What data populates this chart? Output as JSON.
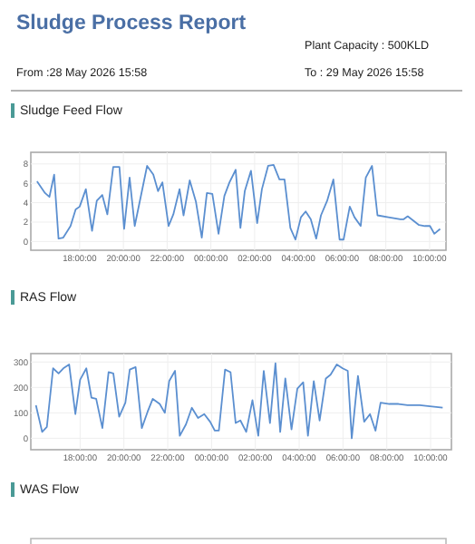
{
  "chart_data": [
    {
      "type": "other",
      "title": "Sludge Process Report",
      "annotations": [
        "Plant Capacity : 500KLD",
        "From :28 May 2026 15:58",
        "To : 29 May 2026 15:58"
      ]
    },
    {
      "type": "line",
      "title": "Sludge Feed Flow",
      "grid": true,
      "xlim": [
        "2026-05-28T15:46",
        "2026-05-29T10:45"
      ],
      "ylim": [
        -0.9,
        9.2
      ],
      "yticks": [
        0,
        2,
        4,
        6,
        8
      ],
      "xticks": [
        {
          "value": "2026-05-28T18:00",
          "label": "18:00:00"
        },
        {
          "value": "2026-05-28T20:00",
          "label": "20:00:00"
        },
        {
          "value": "2026-05-28T22:00",
          "label": "22:00:00"
        },
        {
          "value": "2026-05-29T00:00",
          "label": "00:00:00"
        },
        {
          "value": "2026-05-29T02:00",
          "label": "02:00:00"
        },
        {
          "value": "2026-05-29T04:00",
          "label": "04:00:00"
        },
        {
          "value": "2026-05-29T06:00",
          "label": "06:00:00"
        },
        {
          "value": "2026-05-29T08:00",
          "label": "08:00:00"
        },
        {
          "value": "2026-05-29T10:00",
          "label": "10:00:00"
        }
      ],
      "series": [
        {
          "color": "#5b8fd0",
          "x": [
            "2026-05-28T16:03",
            "2026-05-28T16:25",
            "2026-05-28T16:37",
            "2026-05-28T16:50",
            "2026-05-28T17:02",
            "2026-05-28T17:15",
            "2026-05-28T17:35",
            "2026-05-28T17:49",
            "2026-05-28T18:00",
            "2026-05-28T18:17",
            "2026-05-28T18:34",
            "2026-05-28T18:47",
            "2026-05-28T19:02",
            "2026-05-28T19:16",
            "2026-05-28T19:32",
            "2026-05-28T19:49",
            "2026-05-28T20:02",
            "2026-05-28T20:17",
            "2026-05-28T20:31",
            "2026-05-28T21:05",
            "2026-05-28T21:22",
            "2026-05-28T21:35",
            "2026-05-28T21:47",
            "2026-05-28T22:04",
            "2026-05-28T22:17",
            "2026-05-28T22:34",
            "2026-05-28T22:45",
            "2026-05-28T23:02",
            "2026-05-28T23:19",
            "2026-05-28T23:35",
            "2026-05-28T23:49",
            "2026-05-29T00:04",
            "2026-05-29T00:21",
            "2026-05-29T00:37",
            "2026-05-29T00:51",
            "2026-05-29T01:08",
            "2026-05-29T01:21",
            "2026-05-29T01:33",
            "2026-05-29T01:50",
            "2026-05-29T02:07",
            "2026-05-29T02:20",
            "2026-05-29T02:37",
            "2026-05-29T02:52",
            "2026-05-29T03:08",
            "2026-05-29T03:22",
            "2026-05-29T03:38",
            "2026-05-29T03:52",
            "2026-05-29T04:07",
            "2026-05-29T04:20",
            "2026-05-29T04:34",
            "2026-05-29T04:49",
            "2026-05-29T05:02",
            "2026-05-29T05:19",
            "2026-05-29T05:36",
            "2026-05-29T05:53",
            "2026-05-29T06:04",
            "2026-05-29T06:21",
            "2026-05-29T06:34",
            "2026-05-29T06:51",
            "2026-05-29T07:05",
            "2026-05-29T07:22",
            "2026-05-29T07:37",
            "2026-05-29T08:07",
            "2026-05-29T08:40",
            "2026-05-29T08:49",
            "2026-05-29T09:00",
            "2026-05-29T09:31",
            "2026-05-29T09:47",
            "2026-05-29T10:01",
            "2026-05-29T10:13",
            "2026-05-29T10:29"
          ],
          "values": [
            6.2,
            5.0,
            4.6,
            6.9,
            0.3,
            0.4,
            1.6,
            3.3,
            3.6,
            5.4,
            1.1,
            4.2,
            4.8,
            2.8,
            7.7,
            7.7,
            1.3,
            6.6,
            1.6,
            7.8,
            6.9,
            5.2,
            6.1,
            1.6,
            2.8,
            5.4,
            2.7,
            6.3,
            4.1,
            0.4,
            5.0,
            4.9,
            0.8,
            4.7,
            6.1,
            7.4,
            1.4,
            5.2,
            7.3,
            1.9,
            5.4,
            7.8,
            7.9,
            6.4,
            6.4,
            1.4,
            0.2,
            2.5,
            3.1,
            2.3,
            0.3,
            2.7,
            4.2,
            6.4,
            0.2,
            0.2,
            3.6,
            2.5,
            1.6,
            6.6,
            7.8,
            2.7,
            2.5,
            2.3,
            2.3,
            2.6,
            1.7,
            1.6,
            1.6,
            0.8,
            1.3
          ]
        }
      ]
    },
    {
      "type": "line",
      "title": "RAS Flow",
      "grid": true,
      "xlim": [
        "2026-05-28T15:45",
        "2026-05-29T10:57"
      ],
      "ylim": [
        -45,
        333
      ],
      "yticks": [
        0,
        100,
        200,
        300
      ],
      "xticks": [
        {
          "value": "2026-05-28T18:00",
          "label": "18:00:00"
        },
        {
          "value": "2026-05-28T20:00",
          "label": "20:00:00"
        },
        {
          "value": "2026-05-28T22:00",
          "label": "22:00:00"
        },
        {
          "value": "2026-05-29T00:00",
          "label": "00:00:00"
        },
        {
          "value": "2026-05-29T02:00",
          "label": "02:00:00"
        },
        {
          "value": "2026-05-29T04:00",
          "label": "04:00:00"
        },
        {
          "value": "2026-05-29T06:00",
          "label": "06:00:00"
        },
        {
          "value": "2026-05-29T08:00",
          "label": "08:00:00"
        },
        {
          "value": "2026-05-29T10:00",
          "label": "10:00:00"
        }
      ],
      "series": [
        {
          "color": "#5b8fd0",
          "x": [
            "2026-05-28T15:59",
            "2026-05-28T16:16",
            "2026-05-28T16:29",
            "2026-05-28T16:46",
            "2026-05-28T17:01",
            "2026-05-28T17:14",
            "2026-05-28T17:30",
            "2026-05-28T17:47",
            "2026-05-28T18:00",
            "2026-05-28T18:17",
            "2026-05-28T18:31",
            "2026-05-28T18:44",
            "2026-05-28T19:01",
            "2026-05-28T19:18",
            "2026-05-28T19:31",
            "2026-05-28T19:47",
            "2026-05-28T20:04",
            "2026-05-28T20:16",
            "2026-05-28T20:32",
            "2026-05-28T20:49",
            "2026-05-28T21:05",
            "2026-05-28T21:19",
            "2026-05-28T21:38",
            "2026-05-28T21:52",
            "2026-05-28T22:04",
            "2026-05-28T22:20",
            "2026-05-28T22:33",
            "2026-05-28T22:50",
            "2026-05-28T23:06",
            "2026-05-28T23:23",
            "2026-05-28T23:40",
            "2026-05-28T23:56",
            "2026-05-29T00:09",
            "2026-05-29T00:20",
            "2026-05-29T00:37",
            "2026-05-29T00:52",
            "2026-05-29T01:06",
            "2026-05-29T01:19",
            "2026-05-29T01:35",
            "2026-05-29T01:52",
            "2026-05-29T02:08",
            "2026-05-29T02:23",
            "2026-05-29T02:40",
            "2026-05-29T02:55",
            "2026-05-29T03:08",
            "2026-05-29T03:22",
            "2026-05-29T03:39",
            "2026-05-29T03:55",
            "2026-05-29T04:11",
            "2026-05-29T04:24",
            "2026-05-29T04:40",
            "2026-05-29T04:56",
            "2026-05-29T05:13",
            "2026-05-29T05:26",
            "2026-05-29T05:43",
            "2026-05-29T05:59",
            "2026-05-29T06:13",
            "2026-05-29T06:24",
            "2026-05-29T06:41",
            "2026-05-29T06:58",
            "2026-05-29T07:14",
            "2026-05-29T07:29",
            "2026-05-29T07:43",
            "2026-05-29T08:07",
            "2026-05-29T08:32",
            "2026-05-29T08:57",
            "2026-05-29T09:30",
            "2026-05-29T10:04",
            "2026-05-29T10:33"
          ],
          "values": [
            130,
            25,
            45,
            275,
            255,
            275,
            290,
            95,
            230,
            275,
            160,
            155,
            40,
            260,
            255,
            85,
            140,
            270,
            280,
            40,
            105,
            155,
            135,
            100,
            225,
            265,
            10,
            55,
            120,
            80,
            95,
            65,
            30,
            30,
            270,
            260,
            60,
            70,
            25,
            150,
            10,
            265,
            60,
            295,
            25,
            235,
            35,
            195,
            220,
            10,
            225,
            70,
            235,
            250,
            290,
            275,
            265,
            0,
            245,
            65,
            95,
            30,
            140,
            135,
            135,
            130,
            130,
            125,
            120
          ]
        }
      ]
    },
    {
      "type": "other",
      "title": "WAS Flow"
    }
  ]
}
